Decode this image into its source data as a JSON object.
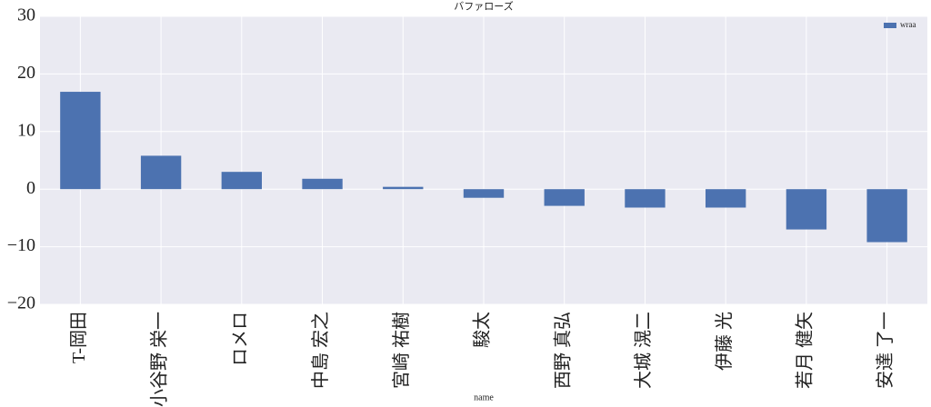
{
  "chart_data": {
    "type": "bar",
    "title": "バファローズ",
    "x_label": "name",
    "categories": [
      "T-岡田",
      "小谷野 栄一",
      "ロメロ",
      "中島 宏之",
      "宮崎 祐樹",
      "駿太",
      "西野 真弘",
      "大城 滉二",
      "伊藤 光",
      "若月 健矢",
      "安達 了一"
    ],
    "series": [
      {
        "name": "wraa",
        "color": "#4c72b0",
        "values": [
          16.9,
          5.8,
          3.0,
          1.8,
          0.4,
          -1.5,
          -2.9,
          -3.2,
          -3.2,
          -7.0,
          -9.2
        ]
      }
    ],
    "ylim": [
      -20,
      30
    ],
    "yticks": [
      {
        "value": -20,
        "label": "−20"
      },
      {
        "value": -10,
        "label": "−10"
      },
      0,
      10,
      20,
      30
    ],
    "grid": true,
    "legend": "upper right"
  }
}
